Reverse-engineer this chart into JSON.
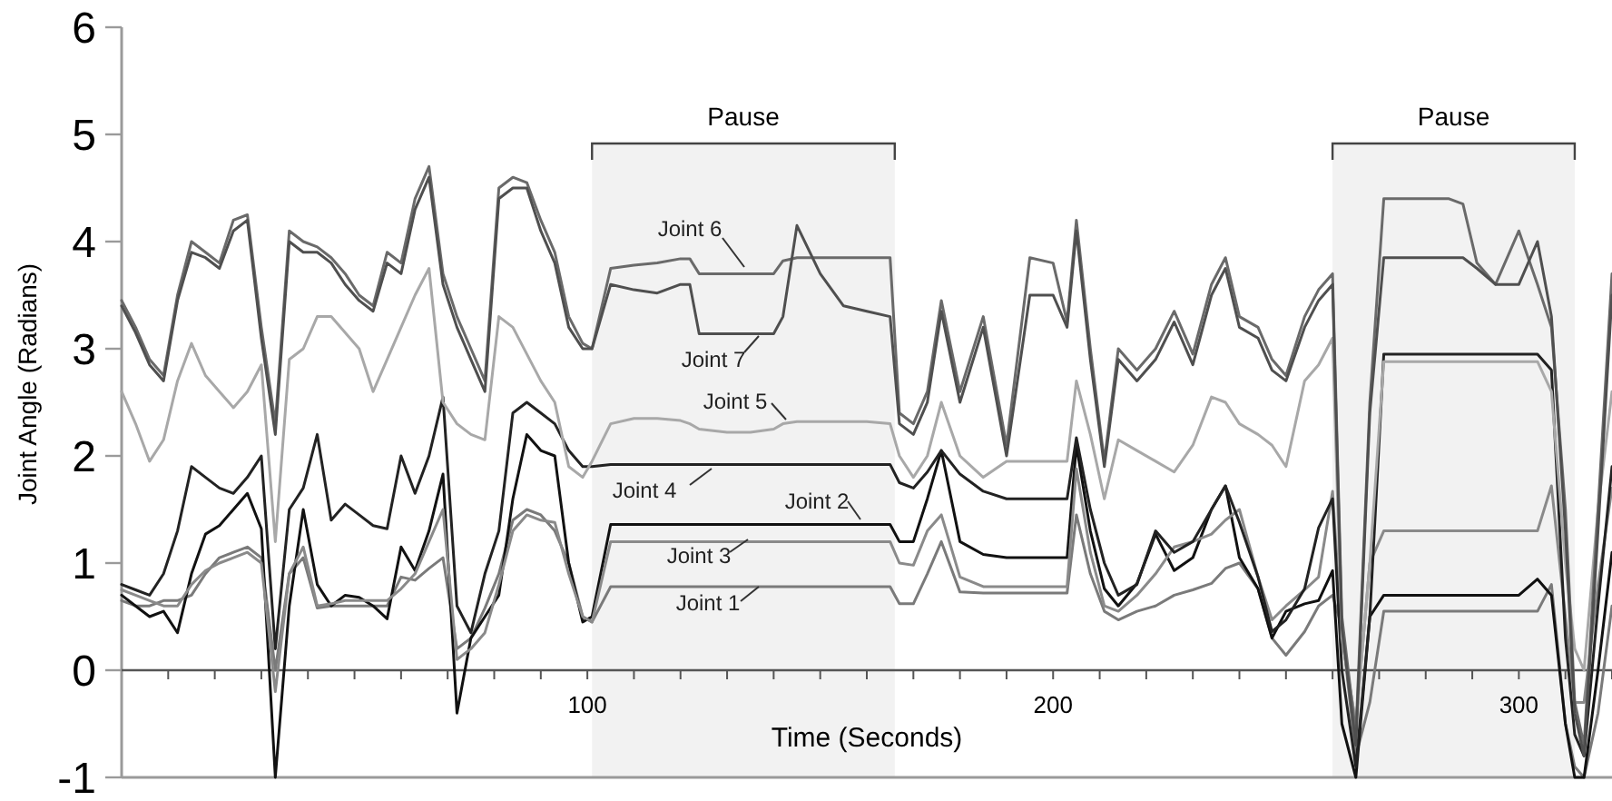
{
  "chart_data": {
    "type": "line",
    "xlabel": "Time (Seconds)",
    "ylabel": "Joint Angle (Radians)",
    "x": [
      0,
      3,
      6,
      9,
      12,
      15,
      18,
      21,
      24,
      27,
      30,
      33,
      36,
      39,
      42,
      45,
      48,
      51,
      54,
      57,
      60,
      63,
      66,
      69,
      72,
      75,
      78,
      81,
      84,
      87,
      90,
      93,
      96,
      99,
      101,
      105,
      110,
      115,
      120,
      122,
      124,
      130,
      135,
      140,
      142,
      145,
      150,
      155,
      160,
      165,
      167,
      170,
      173,
      176,
      180,
      185,
      190,
      195,
      200,
      203,
      205,
      208,
      211,
      214,
      218,
      222,
      226,
      230,
      234,
      237,
      240,
      244,
      247,
      250,
      254,
      257,
      260,
      262,
      265,
      268,
      271,
      275,
      280,
      285,
      288,
      291,
      295,
      300,
      304,
      307,
      310,
      312,
      314,
      317,
      320
    ],
    "xlim": [
      0,
      320
    ],
    "xticks": [
      {
        "value": 10,
        "label": null
      },
      {
        "value": 20,
        "label": null
      },
      {
        "value": 30,
        "label": null
      },
      {
        "value": 40,
        "label": null
      },
      {
        "value": 50,
        "label": null
      },
      {
        "value": 60,
        "label": null
      },
      {
        "value": 70,
        "label": null
      },
      {
        "value": 80,
        "label": null
      },
      {
        "value": 90,
        "label": null
      },
      100,
      {
        "value": 110,
        "label": null
      },
      {
        "value": 120,
        "label": null
      },
      {
        "value": 130,
        "label": null
      },
      {
        "value": 140,
        "label": null
      },
      {
        "value": 150,
        "label": null
      },
      {
        "value": 160,
        "label": null
      },
      {
        "value": 170,
        "label": null
      },
      {
        "value": 180,
        "label": null
      },
      {
        "value": 190,
        "label": null
      },
      200,
      {
        "value": 210,
        "label": null
      },
      {
        "value": 220,
        "label": null
      },
      {
        "value": 230,
        "label": null
      },
      {
        "value": 240,
        "label": null
      },
      {
        "value": 250,
        "label": null
      },
      {
        "value": 260,
        "label": null
      },
      {
        "value": 270,
        "label": null
      },
      {
        "value": 280,
        "label": null
      },
      {
        "value": 290,
        "label": null
      },
      300,
      {
        "value": 310,
        "label": null
      },
      {
        "value": 320,
        "label": null
      }
    ],
    "ylim": [
      -1,
      6
    ],
    "yticks": [
      -1,
      0,
      1,
      2,
      3,
      4,
      5,
      6
    ],
    "grid": false,
    "marker": "none",
    "line_style": "solid",
    "bands": [
      {
        "axis": "x",
        "from": 101,
        "to": 166,
        "label": "Pause",
        "color": "#f2f2f2"
      },
      {
        "axis": "x",
        "from": 260,
        "to": 312,
        "label": "Pause",
        "color": "#f2f2f2"
      }
    ],
    "series": [
      {
        "name": "Joint 1",
        "color": "#7a7a7a",
        "values": [
          0.65,
          0.6,
          0.6,
          0.65,
          0.65,
          0.7,
          0.9,
          1.05,
          1.1,
          1.15,
          1.05,
          0.0,
          0.9,
          1.05,
          0.58,
          0.6,
          0.6,
          0.6,
          0.6,
          0.6,
          0.87,
          0.84,
          0.95,
          1.05,
          0.2,
          0.3,
          0.58,
          0.9,
          1.4,
          1.5,
          1.45,
          1.3,
          1.0,
          0.5,
          0.45,
          0.78,
          0.78,
          0.78,
          0.78,
          0.78,
          0.78,
          0.78,
          0.78,
          0.78,
          0.78,
          0.78,
          0.78,
          0.78,
          0.78,
          0.78,
          0.62,
          0.62,
          0.9,
          1.2,
          0.73,
          0.72,
          0.72,
          0.72,
          0.72,
          0.72,
          1.45,
          0.9,
          0.55,
          0.47,
          0.55,
          0.6,
          0.7,
          0.75,
          0.81,
          0.95,
          1.0,
          0.76,
          0.3,
          0.14,
          0.36,
          0.6,
          0.7,
          0.4,
          -0.8,
          -0.3,
          0.55,
          0.55,
          0.55,
          0.55,
          0.55,
          0.55,
          0.55,
          0.55,
          0.55,
          0.8,
          -0.5,
          -0.9,
          -1.0,
          -0.4,
          0.6
        ]
      },
      {
        "name": "Joint 2",
        "color": "#111111",
        "values": [
          0.7,
          0.6,
          0.5,
          0.55,
          0.35,
          0.9,
          1.27,
          1.35,
          1.5,
          1.65,
          1.32,
          -1.0,
          0.6,
          1.5,
          0.8,
          0.6,
          0.7,
          0.68,
          0.6,
          0.48,
          1.15,
          0.93,
          1.3,
          1.83,
          -0.4,
          0.3,
          0.5,
          0.7,
          1.6,
          2.2,
          2.05,
          2.0,
          1.0,
          0.45,
          0.5,
          1.36,
          1.36,
          1.36,
          1.36,
          1.36,
          1.36,
          1.36,
          1.36,
          1.36,
          1.36,
          1.36,
          1.36,
          1.36,
          1.36,
          1.36,
          1.2,
          1.2,
          1.6,
          2.05,
          1.2,
          1.08,
          1.05,
          1.05,
          1.05,
          1.05,
          2.1,
          1.3,
          0.76,
          0.6,
          0.81,
          1.27,
          0.93,
          1.05,
          1.5,
          1.72,
          1.05,
          0.76,
          0.3,
          0.55,
          0.62,
          0.65,
          0.93,
          -0.5,
          -1.0,
          0.5,
          0.7,
          0.7,
          0.7,
          0.7,
          0.7,
          0.7,
          0.7,
          0.7,
          0.85,
          0.7,
          -0.5,
          -1.0,
          -1.0,
          0.0,
          1.1
        ]
      },
      {
        "name": "Joint 3",
        "color": "#8a8a8a",
        "values": [
          0.75,
          0.7,
          0.65,
          0.6,
          0.6,
          0.8,
          0.93,
          1.0,
          1.05,
          1.1,
          1.0,
          -0.2,
          0.9,
          1.15,
          0.6,
          0.62,
          0.65,
          0.65,
          0.65,
          0.65,
          0.76,
          0.9,
          1.2,
          1.5,
          0.1,
          0.2,
          0.35,
          0.8,
          1.3,
          1.45,
          1.4,
          1.38,
          0.9,
          0.5,
          0.45,
          1.2,
          1.2,
          1.2,
          1.2,
          1.2,
          1.2,
          1.2,
          1.2,
          1.2,
          1.2,
          1.2,
          1.2,
          1.2,
          1.2,
          1.2,
          1.0,
          0.98,
          1.3,
          1.45,
          0.87,
          0.78,
          0.78,
          0.78,
          0.78,
          0.78,
          1.88,
          1.1,
          0.6,
          0.55,
          0.7,
          0.9,
          1.15,
          1.2,
          1.27,
          1.4,
          1.5,
          0.87,
          0.47,
          0.6,
          0.75,
          0.87,
          1.67,
          0.3,
          -0.5,
          1.0,
          1.3,
          1.3,
          1.3,
          1.3,
          1.3,
          1.3,
          1.3,
          1.3,
          1.3,
          1.72,
          0.5,
          -0.3,
          -0.3,
          0.8,
          1.7
        ]
      },
      {
        "name": "Joint 4",
        "color": "#222222",
        "values": [
          0.8,
          0.75,
          0.7,
          0.9,
          1.3,
          1.9,
          1.8,
          1.7,
          1.65,
          1.8,
          2.0,
          0.2,
          1.5,
          1.7,
          2.2,
          1.4,
          1.55,
          1.45,
          1.35,
          1.32,
          2.0,
          1.65,
          2.0,
          2.55,
          0.6,
          0.35,
          0.9,
          1.3,
          2.4,
          2.5,
          2.4,
          2.3,
          2.05,
          1.9,
          1.9,
          1.92,
          1.92,
          1.92,
          1.92,
          1.92,
          1.92,
          1.92,
          1.92,
          1.92,
          1.92,
          1.92,
          1.92,
          1.92,
          1.92,
          1.92,
          1.75,
          1.7,
          1.85,
          2.05,
          1.83,
          1.67,
          1.6,
          1.6,
          1.6,
          1.6,
          2.17,
          1.5,
          1.0,
          0.7,
          0.8,
          1.3,
          1.1,
          1.2,
          1.5,
          1.72,
          1.38,
          0.87,
          0.36,
          0.47,
          0.76,
          1.33,
          1.6,
          0.0,
          -0.9,
          0.5,
          2.95,
          2.95,
          2.95,
          2.95,
          2.95,
          2.95,
          2.95,
          2.95,
          2.95,
          2.8,
          0.3,
          -0.6,
          -0.8,
          0.6,
          1.9
        ]
      },
      {
        "name": "Joint 5",
        "color": "#a8a8a8",
        "values": [
          2.6,
          2.3,
          1.95,
          2.15,
          2.7,
          3.05,
          2.75,
          2.6,
          2.45,
          2.6,
          2.85,
          1.2,
          2.9,
          3.0,
          3.3,
          3.3,
          3.15,
          3.0,
          2.6,
          2.9,
          3.2,
          3.5,
          3.75,
          2.5,
          2.3,
          2.2,
          2.15,
          3.3,
          3.2,
          2.95,
          2.7,
          2.5,
          1.9,
          1.8,
          1.95,
          2.3,
          2.35,
          2.35,
          2.33,
          2.3,
          2.25,
          2.22,
          2.22,
          2.25,
          2.3,
          2.32,
          2.32,
          2.32,
          2.32,
          2.3,
          2.0,
          1.8,
          2.0,
          2.5,
          2.0,
          1.8,
          1.95,
          1.95,
          1.95,
          1.95,
          2.7,
          2.2,
          1.6,
          2.15,
          2.05,
          1.95,
          1.85,
          2.1,
          2.55,
          2.5,
          2.3,
          2.2,
          2.1,
          1.9,
          2.7,
          2.85,
          3.1,
          0.3,
          -0.5,
          1.0,
          2.88,
          2.88,
          2.88,
          2.88,
          2.88,
          2.88,
          2.88,
          2.88,
          2.88,
          2.6,
          1.0,
          0.2,
          0.0,
          1.5,
          2.6
        ]
      },
      {
        "name": "Joint 6",
        "color": "#6a6a6a",
        "values": [
          3.45,
          3.2,
          2.9,
          2.75,
          3.5,
          4.0,
          3.9,
          3.8,
          4.2,
          4.25,
          3.2,
          2.3,
          4.1,
          4.0,
          3.95,
          3.85,
          3.7,
          3.5,
          3.4,
          3.9,
          3.8,
          4.4,
          4.7,
          3.7,
          3.3,
          3.0,
          2.7,
          4.5,
          4.6,
          4.55,
          4.2,
          3.9,
          3.3,
          3.05,
          3.0,
          3.75,
          3.78,
          3.8,
          3.84,
          3.84,
          3.7,
          3.7,
          3.7,
          3.7,
          3.82,
          3.85,
          3.85,
          3.85,
          3.85,
          3.85,
          2.4,
          2.3,
          2.6,
          3.45,
          2.6,
          3.3,
          2.1,
          3.85,
          3.8,
          3.25,
          4.2,
          3.0,
          1.95,
          3.0,
          2.8,
          3.0,
          3.35,
          2.95,
          3.6,
          3.85,
          3.3,
          3.2,
          2.9,
          2.75,
          3.3,
          3.55,
          3.7,
          0.5,
          -0.6,
          2.5,
          4.4,
          4.4,
          4.4,
          4.4,
          4.35,
          3.8,
          3.6,
          4.1,
          3.6,
          3.2,
          1.5,
          -0.3,
          -0.7,
          1.5,
          3.7
        ]
      },
      {
        "name": "Joint 7",
        "color": "#4f4f4f",
        "values": [
          3.4,
          3.15,
          2.85,
          2.7,
          3.45,
          3.9,
          3.85,
          3.75,
          4.1,
          4.2,
          3.1,
          2.2,
          4.0,
          3.9,
          3.9,
          3.8,
          3.6,
          3.45,
          3.35,
          3.8,
          3.7,
          4.3,
          4.6,
          3.6,
          3.2,
          2.9,
          2.6,
          4.4,
          4.5,
          4.5,
          4.1,
          3.8,
          3.2,
          3.0,
          3.0,
          3.6,
          3.55,
          3.52,
          3.6,
          3.6,
          3.14,
          3.14,
          3.14,
          3.14,
          3.3,
          4.15,
          3.7,
          3.4,
          3.35,
          3.3,
          2.3,
          2.2,
          2.5,
          3.35,
          2.5,
          3.2,
          2.0,
          3.5,
          3.5,
          3.2,
          4.1,
          2.9,
          1.9,
          2.9,
          2.7,
          2.9,
          3.25,
          2.85,
          3.5,
          3.75,
          3.2,
          3.1,
          2.8,
          2.7,
          3.2,
          3.45,
          3.6,
          0.4,
          -0.7,
          2.4,
          3.85,
          3.85,
          3.85,
          3.85,
          3.85,
          3.75,
          3.6,
          3.6,
          4.0,
          3.3,
          1.3,
          -0.4,
          -0.8,
          1.3,
          3.5
        ]
      }
    ]
  }
}
